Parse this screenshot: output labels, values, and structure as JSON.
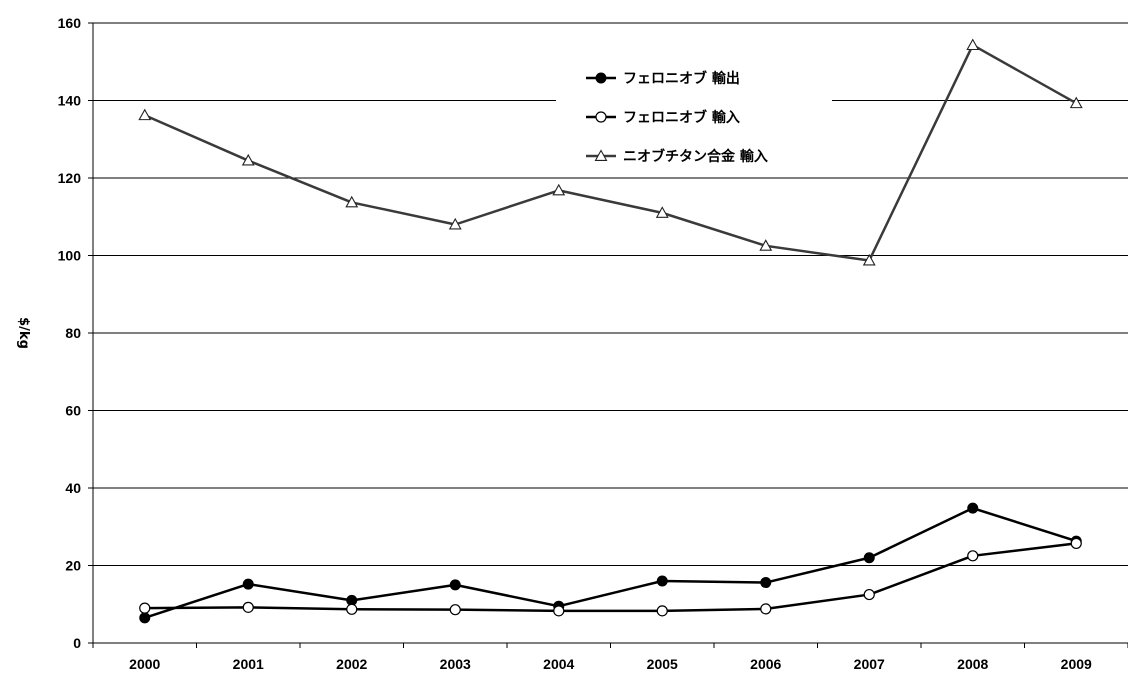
{
  "chart_data": {
    "type": "line",
    "title": "",
    "xlabel": "",
    "ylabel": "$/kg",
    "ylim": [
      0,
      160
    ],
    "yticks": [
      "0",
      "20",
      "40",
      "60",
      "80",
      "100",
      "120",
      "140",
      "160"
    ],
    "categories": [
      "2000",
      "2001",
      "2002",
      "2003",
      "2004",
      "2005",
      "2006",
      "2007",
      "2008",
      "2009"
    ],
    "grid": true,
    "legend_position": "top-center",
    "series": [
      {
        "name": "フェロニオブ 輸出",
        "marker": "filled-circle",
        "color": "#000000",
        "values": [
          6.5,
          15.2,
          11.0,
          15.0,
          9.5,
          16.0,
          15.6,
          22.0,
          34.8,
          26.3
        ]
      },
      {
        "name": "フェロニオブ 輸入",
        "marker": "open-circle",
        "color": "#000000",
        "values": [
          9.0,
          9.2,
          8.7,
          8.6,
          8.3,
          8.3,
          8.8,
          12.5,
          22.5,
          25.7
        ]
      },
      {
        "name": "ニオブチタン合金 輸入",
        "marker": "open-triangle",
        "color": "#3a3a3a",
        "values": [
          136.2,
          124.5,
          113.7,
          108.0,
          116.8,
          111.0,
          102.5,
          98.7,
          154.3,
          139.3
        ]
      }
    ]
  }
}
